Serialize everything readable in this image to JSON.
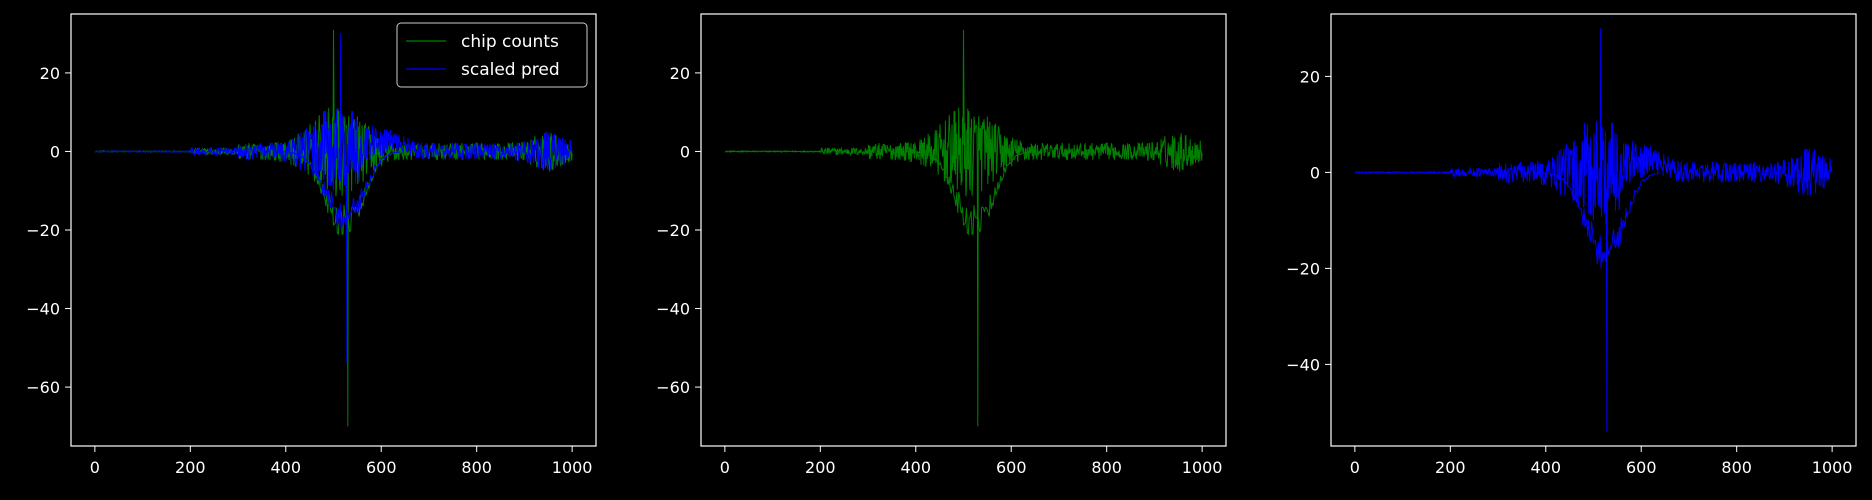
{
  "colors": {
    "background": "#000000",
    "axes": "#ffffff",
    "chip": "#008000",
    "pred": "#0000ff"
  },
  "legend": {
    "placement": "top-right",
    "entries": [
      "chip counts",
      "scaled pred"
    ]
  },
  "chart_data": [
    {
      "type": "line",
      "legend": "top-right",
      "xlim": [
        -50,
        1050
      ],
      "ylim": [
        -75,
        35
      ],
      "xticks": [
        0,
        200,
        400,
        600,
        800,
        1000
      ],
      "yticks": [
        20,
        0,
        -20,
        -40,
        -60
      ],
      "xtick_labels": [
        "0",
        "200",
        "400",
        "600",
        "800",
        "1000"
      ],
      "ytick_labels": [
        "20",
        "0",
        "−20",
        "−40",
        "−60"
      ],
      "series": [
        {
          "name": "chip counts",
          "color": "#008000",
          "x_range": [
            0,
            1000
          ],
          "y_min": -70,
          "y_max": 31,
          "peak_x": 500,
          "trough_x": 530
        },
        {
          "name": "scaled pred",
          "color": "#0000ff",
          "x_range": [
            0,
            1000
          ],
          "y_min": -54,
          "y_max": 30,
          "peak_x": 515,
          "trough_x": 528
        }
      ]
    },
    {
      "type": "line",
      "xlim": [
        -50,
        1050
      ],
      "ylim": [
        -75,
        35
      ],
      "xticks": [
        0,
        200,
        400,
        600,
        800,
        1000
      ],
      "yticks": [
        20,
        0,
        -20,
        -40,
        -60
      ],
      "xtick_labels": [
        "0",
        "200",
        "400",
        "600",
        "800",
        "1000"
      ],
      "ytick_labels": [
        "20",
        "0",
        "−20",
        "−40",
        "−60"
      ],
      "series": [
        {
          "color": "#008000",
          "x_range": [
            0,
            1000
          ],
          "y_min": -70,
          "y_max": 31,
          "peak_x": 500,
          "trough_x": 530
        }
      ]
    },
    {
      "type": "line",
      "xlim": [
        -50,
        1050
      ],
      "ylim": [
        -57,
        33
      ],
      "xticks": [
        0,
        200,
        400,
        600,
        800,
        1000
      ],
      "yticks": [
        20,
        0,
        -20,
        -40
      ],
      "xtick_labels": [
        "0",
        "200",
        "400",
        "600",
        "800",
        "1000"
      ],
      "ytick_labels": [
        "20",
        "0",
        "−20",
        "−40"
      ],
      "series": [
        {
          "color": "#0000ff",
          "x_range": [
            0,
            1000
          ],
          "y_min": -54,
          "y_max": 30,
          "peak_x": 515,
          "trough_x": 528
        }
      ]
    }
  ]
}
